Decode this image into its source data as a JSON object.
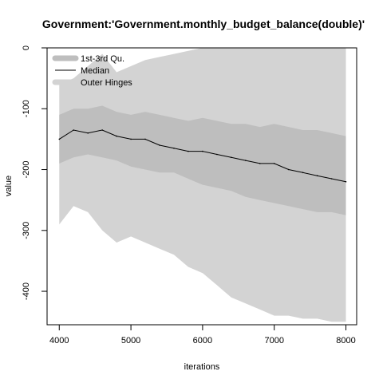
{
  "chart_data": {
    "type": "line",
    "title": "Government:'Government.monthly_budget_balance(double)'",
    "xlabel": "iterations",
    "ylabel": "value",
    "xlim": [
      3830,
      8150
    ],
    "ylim": [
      -455,
      0
    ],
    "x_ticks": [
      {
        "value": 4000,
        "label": "4000"
      },
      {
        "value": 5000,
        "label": "5000"
      },
      {
        "value": 6000,
        "label": "6000"
      },
      {
        "value": 7000,
        "label": "7000"
      },
      {
        "value": 8000,
        "label": "8000"
      }
    ],
    "y_ticks": [
      {
        "value": 0,
        "label": "0"
      },
      {
        "value": -100,
        "label": "-100"
      },
      {
        "value": -200,
        "label": "-200"
      },
      {
        "value": -300,
        "label": "-300"
      },
      {
        "value": -400,
        "label": "-400"
      }
    ],
    "grid": false,
    "legend_position": "top-left",
    "series": [
      {
        "name": "1st-3rd Qu.",
        "kind": "band",
        "color": "#bebebe"
      },
      {
        "name": "Median",
        "kind": "line",
        "color": "#000000"
      },
      {
        "name": "Outer Hinges",
        "kind": "band",
        "color": "#d3d3d3"
      }
    ],
    "x": [
      4000,
      4200,
      4400,
      4600,
      4800,
      5000,
      5200,
      5400,
      5600,
      5800,
      6000,
      6200,
      6400,
      6600,
      6800,
      7000,
      7200,
      7400,
      7600,
      7800,
      8000
    ],
    "median": [
      -150,
      -135,
      -140,
      -135,
      -145,
      -150,
      -150,
      -160,
      -165,
      -170,
      -170,
      -175,
      -180,
      -185,
      -190,
      -190,
      -200,
      -205,
      -210,
      -215,
      -220
    ],
    "q1": [
      -190,
      -180,
      -175,
      -180,
      -185,
      -195,
      -200,
      -205,
      -205,
      -215,
      -225,
      -230,
      -235,
      -245,
      -250,
      -255,
      -260,
      -265,
      -270,
      -270,
      -275
    ],
    "q3": [
      -110,
      -100,
      -100,
      -95,
      -105,
      -110,
      -105,
      -110,
      -115,
      -120,
      -115,
      -120,
      -125,
      -125,
      -130,
      -125,
      -130,
      -135,
      -135,
      -140,
      -145
    ],
    "lower_hinge": [
      -290,
      -260,
      -270,
      -300,
      -320,
      -310,
      -320,
      -330,
      -340,
      -360,
      -370,
      -390,
      -410,
      -420,
      -430,
      -440,
      -440,
      -445,
      -445,
      -450,
      -450
    ],
    "upper_hinge": [
      -60,
      -50,
      -30,
      -10,
      -40,
      -30,
      -20,
      -15,
      -10,
      -5,
      0,
      0,
      0,
      0,
      0,
      0,
      0,
      0,
      0,
      0,
      0
    ]
  }
}
